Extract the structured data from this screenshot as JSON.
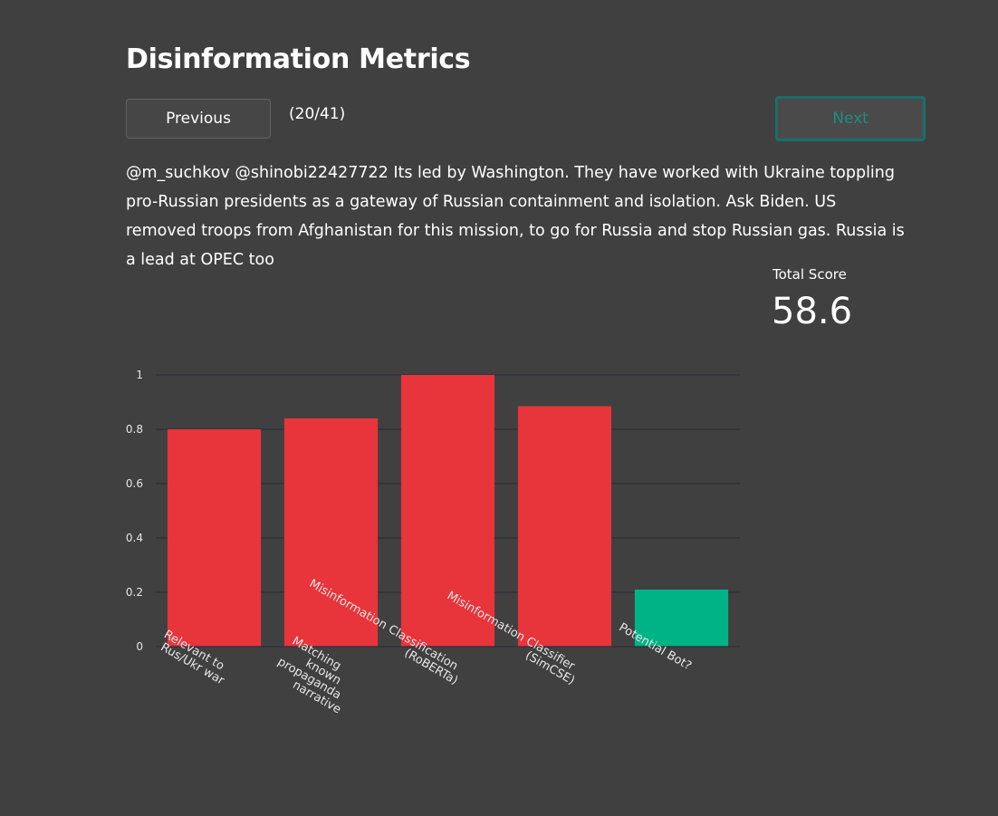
{
  "header": {
    "title": "Disinformation Metrics"
  },
  "nav": {
    "previous_label": "Previous",
    "counter": "(20/41)",
    "next_label": "Next"
  },
  "tweet": {
    "text": "@m_suchkov @shinobi22427722 Its led by Washington. They have worked with Ukraine toppling pro-Russian presidents as a gateway of Russian containment and isolation. Ask Biden. US removed troops from Afghanistan for this mission, to go for Russia and stop Russian gas. Russia is a lead at OPEC too"
  },
  "score": {
    "label": "Total Score",
    "value": "58.6"
  },
  "colors": {
    "background": "#404040",
    "bar_red": "#e8343b",
    "bar_green": "#00b386",
    "next_accent": "#1a6f68"
  },
  "chart_data": {
    "type": "bar",
    "title": "",
    "xlabel": "",
    "ylabel": "",
    "ylim": [
      0,
      1
    ],
    "yticks": [
      0,
      0.2,
      0.4,
      0.6,
      0.8,
      1
    ],
    "ytick_labels": [
      "0",
      "0.2",
      "0.4",
      "0.6",
      "0.8",
      "1"
    ],
    "grid": true,
    "categories": [
      [
        "Relevant to",
        "Rus/Ukr war"
      ],
      [
        "Matching",
        "known",
        "propaganda",
        "narrative"
      ],
      [
        "Misinformation Classification",
        "(RoBERTa)"
      ],
      [
        "Misinformation Classifier",
        "(SimCSE)"
      ],
      [
        "Potential Bot?"
      ]
    ],
    "values": [
      0.8,
      0.84,
      1.0,
      0.885,
      0.21
    ],
    "bar_colors": [
      "#e8343b",
      "#e8343b",
      "#e8343b",
      "#e8343b",
      "#00b386"
    ]
  }
}
